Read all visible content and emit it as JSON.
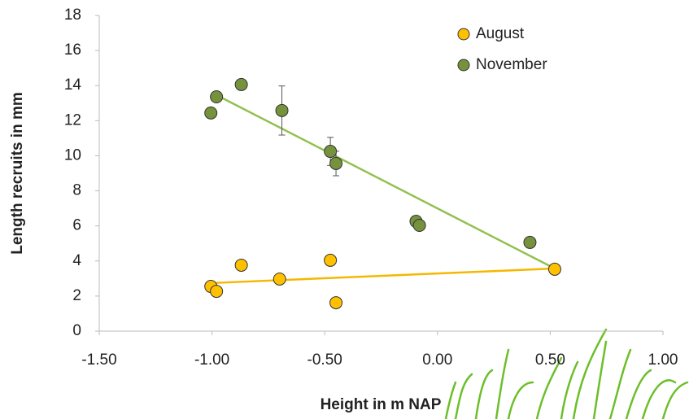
{
  "chart_data": {
    "type": "scatter",
    "x_label": "Height in m NAP",
    "y_label": "Length recruits in mm",
    "xlim": [
      -1.5,
      1.0
    ],
    "xticks": [
      {
        "value": -1.5,
        "label": "-1.50"
      },
      {
        "value": -1.0,
        "label": "-1.00"
      },
      {
        "value": -0.5,
        "label": "-0.50"
      },
      {
        "value": 0,
        "label": "0.00"
      },
      {
        "value": 0.5,
        "label": "0.50"
      },
      {
        "value": 1.0,
        "label": "1.00"
      }
    ],
    "ylim": [
      0,
      18
    ],
    "yticks": [
      0,
      2,
      4,
      6,
      8,
      10,
      12,
      14,
      16,
      18
    ],
    "legend": "top-right",
    "series": [
      {
        "name": "August",
        "color": "#FFC000",
        "trend_color": "#F5B800",
        "x": [
          -1.005,
          -0.98,
          -0.87,
          -0.7,
          -0.475,
          -0.45,
          0.52
        ],
        "values": [
          2.55,
          2.27,
          3.76,
          2.97,
          4.04,
          1.62,
          3.53
        ],
        "trendline": {
          "x": [
            -1.005,
            0.52
          ],
          "y": [
            2.74,
            3.57
          ]
        }
      },
      {
        "name": "November",
        "color": "#76923C",
        "trend_color": "#92C050",
        "x": [
          -1.005,
          -0.98,
          -0.87,
          -0.69,
          -0.475,
          -0.45,
          -0.095,
          -0.08,
          0.41
        ],
        "values": [
          12.44,
          13.36,
          14.06,
          12.58,
          10.25,
          9.56,
          6.26,
          6.03,
          5.06
        ],
        "errors": [
          null,
          0.3,
          null,
          1.4,
          0.8,
          0.7,
          null,
          null,
          null
        ],
        "trendline": {
          "x": [
            -0.98,
            0.52
          ],
          "y": [
            13.46,
            3.57
          ]
        }
      }
    ]
  }
}
